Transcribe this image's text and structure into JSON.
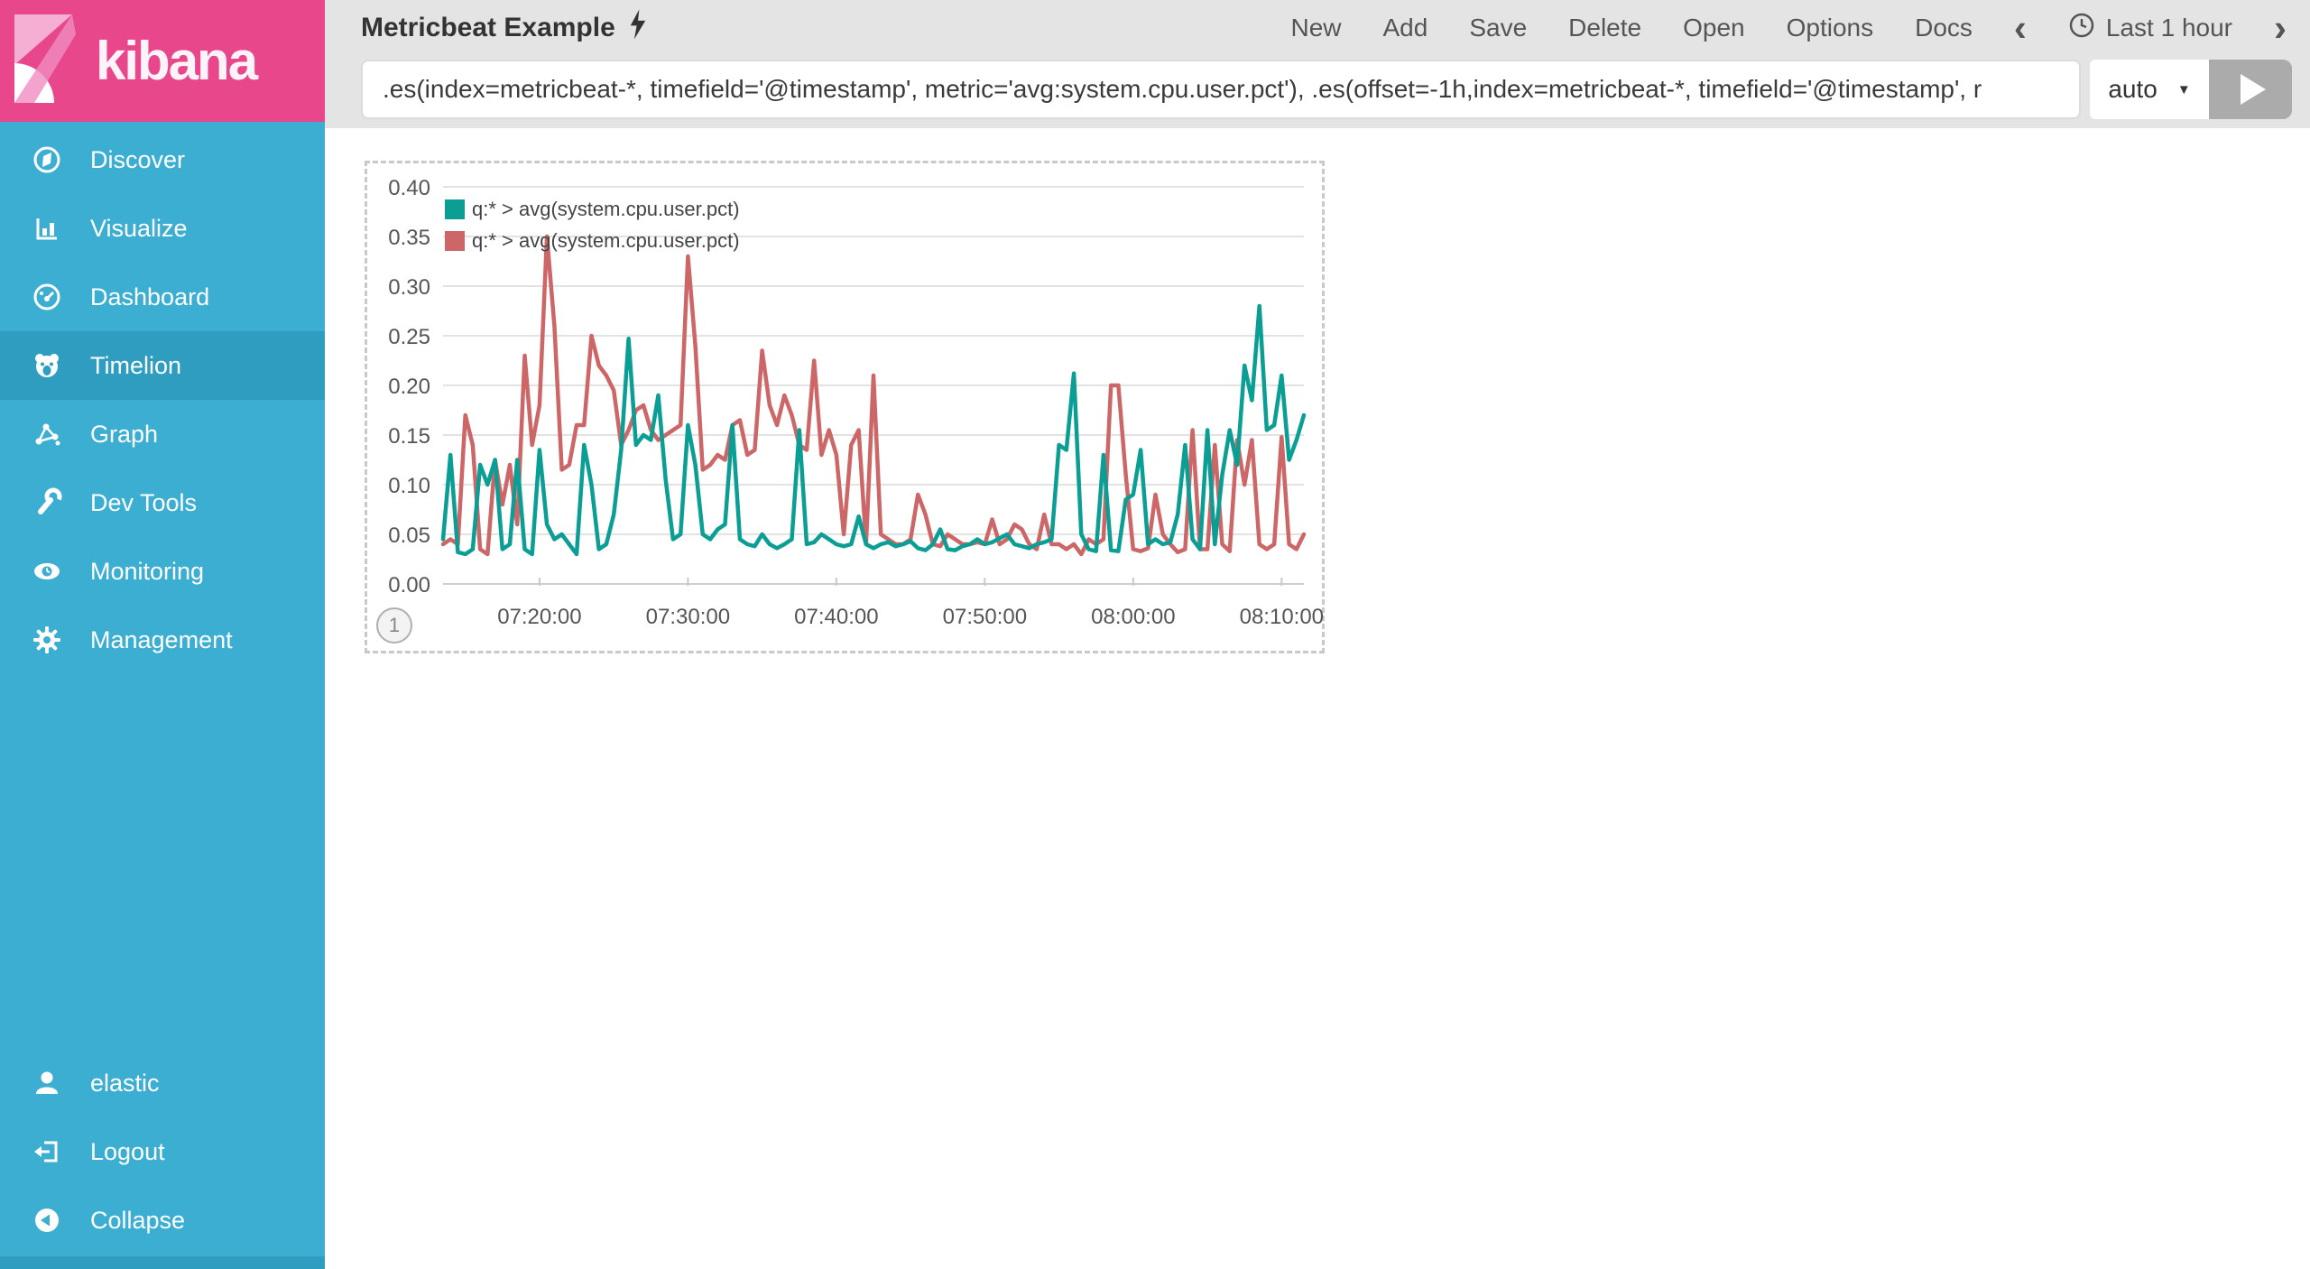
{
  "app": {
    "brand": "kibana"
  },
  "sidebar": {
    "items": [
      {
        "label": "Discover"
      },
      {
        "label": "Visualize"
      },
      {
        "label": "Dashboard"
      },
      {
        "label": "Timelion",
        "selected": true
      },
      {
        "label": "Graph"
      },
      {
        "label": "Dev Tools"
      },
      {
        "label": "Monitoring"
      },
      {
        "label": "Management"
      }
    ],
    "footer_items": [
      {
        "label": "elastic"
      },
      {
        "label": "Logout"
      },
      {
        "label": "Collapse"
      }
    ],
    "colors": {
      "bg": "#3CAED2",
      "selected": "#2E9DC0",
      "brand_bg": "#E8488B"
    }
  },
  "header": {
    "title": "Metricbeat Example",
    "menu": [
      {
        "label": "New"
      },
      {
        "label": "Add"
      },
      {
        "label": "Save"
      },
      {
        "label": "Delete"
      },
      {
        "label": "Open"
      },
      {
        "label": "Options"
      },
      {
        "label": "Docs"
      }
    ],
    "time_picker": {
      "label": "Last 1 hour"
    }
  },
  "query": {
    "value": ".es(index=metricbeat-*, timefield='@timestamp', metric='avg:system.cpu.user.pct'), .es(offset=-1h,index=metricbeat-*, timefield='@timestamp', r",
    "interval": "auto"
  },
  "panel": {
    "badge": "1"
  },
  "chart_data": {
    "type": "line",
    "title": "",
    "xlabel": "",
    "ylabel": "",
    "ylim": [
      0,
      0.4
    ],
    "y_tick_step": 0.05,
    "y_tick_labels": [
      "0.00",
      "0.05",
      "0.10",
      "0.15",
      "0.20",
      "0.25",
      "0.30",
      "0.35",
      "0.40"
    ],
    "x_tick_indices": [
      13,
      33,
      53,
      73,
      93,
      113
    ],
    "x_tick_labels": [
      "07:20:00",
      "07:30:00",
      "07:40:00",
      "07:50:00",
      "08:00:00",
      "08:10:00"
    ],
    "grid": true,
    "legend_position": "top-left",
    "series": [
      {
        "name": "q:* > avg(system.cpu.user.pct)",
        "color": "#0B9E95",
        "values": [
          0.045,
          0.13,
          0.032,
          0.03,
          0.035,
          0.12,
          0.1,
          0.125,
          0.035,
          0.04,
          0.125,
          0.035,
          0.03,
          0.135,
          0.06,
          0.045,
          0.05,
          0.04,
          0.03,
          0.14,
          0.1,
          0.035,
          0.04,
          0.07,
          0.135,
          0.247,
          0.14,
          0.15,
          0.145,
          0.19,
          0.105,
          0.045,
          0.05,
          0.16,
          0.12,
          0.05,
          0.045,
          0.055,
          0.06,
          0.16,
          0.045,
          0.04,
          0.038,
          0.05,
          0.04,
          0.036,
          0.04,
          0.045,
          0.155,
          0.04,
          0.042,
          0.05,
          0.045,
          0.04,
          0.038,
          0.04,
          0.068,
          0.04,
          0.036,
          0.04,
          0.042,
          0.038,
          0.04,
          0.043,
          0.036,
          0.034,
          0.04,
          0.055,
          0.035,
          0.034,
          0.038,
          0.04,
          0.045,
          0.04,
          0.042,
          0.046,
          0.05,
          0.04,
          0.038,
          0.036,
          0.04,
          0.042,
          0.045,
          0.14,
          0.135,
          0.212,
          0.05,
          0.035,
          0.033,
          0.13,
          0.034,
          0.033,
          0.085,
          0.09,
          0.135,
          0.04,
          0.045,
          0.04,
          0.042,
          0.07,
          0.14,
          0.045,
          0.035,
          0.155,
          0.04,
          0.11,
          0.155,
          0.12,
          0.22,
          0.185,
          0.28,
          0.155,
          0.16,
          0.21,
          0.125,
          0.145,
          0.17
        ]
      },
      {
        "name": "q:* > avg(system.cpu.user.pct)",
        "color": "#CC6667",
        "values": [
          0.04,
          0.045,
          0.04,
          0.17,
          0.14,
          0.035,
          0.03,
          0.125,
          0.08,
          0.12,
          0.06,
          0.23,
          0.14,
          0.18,
          0.35,
          0.26,
          0.115,
          0.12,
          0.16,
          0.16,
          0.25,
          0.22,
          0.21,
          0.195,
          0.14,
          0.155,
          0.175,
          0.18,
          0.155,
          0.145,
          0.15,
          0.155,
          0.16,
          0.33,
          0.24,
          0.115,
          0.12,
          0.13,
          0.125,
          0.16,
          0.165,
          0.13,
          0.135,
          0.235,
          0.18,
          0.16,
          0.19,
          0.17,
          0.14,
          0.135,
          0.225,
          0.13,
          0.155,
          0.13,
          0.05,
          0.14,
          0.155,
          0.04,
          0.21,
          0.05,
          0.045,
          0.04,
          0.04,
          0.045,
          0.09,
          0.07,
          0.04,
          0.038,
          0.05,
          0.045,
          0.04,
          0.04,
          0.042,
          0.04,
          0.065,
          0.04,
          0.045,
          0.06,
          0.055,
          0.04,
          0.035,
          0.07,
          0.04,
          0.04,
          0.035,
          0.04,
          0.03,
          0.045,
          0.04,
          0.045,
          0.2,
          0.2,
          0.11,
          0.035,
          0.033,
          0.036,
          0.09,
          0.05,
          0.04,
          0.032,
          0.035,
          0.155,
          0.035,
          0.035,
          0.14,
          0.04,
          0.033,
          0.145,
          0.1,
          0.145,
          0.04,
          0.035,
          0.04,
          0.148,
          0.04,
          0.035,
          0.05
        ]
      }
    ]
  }
}
